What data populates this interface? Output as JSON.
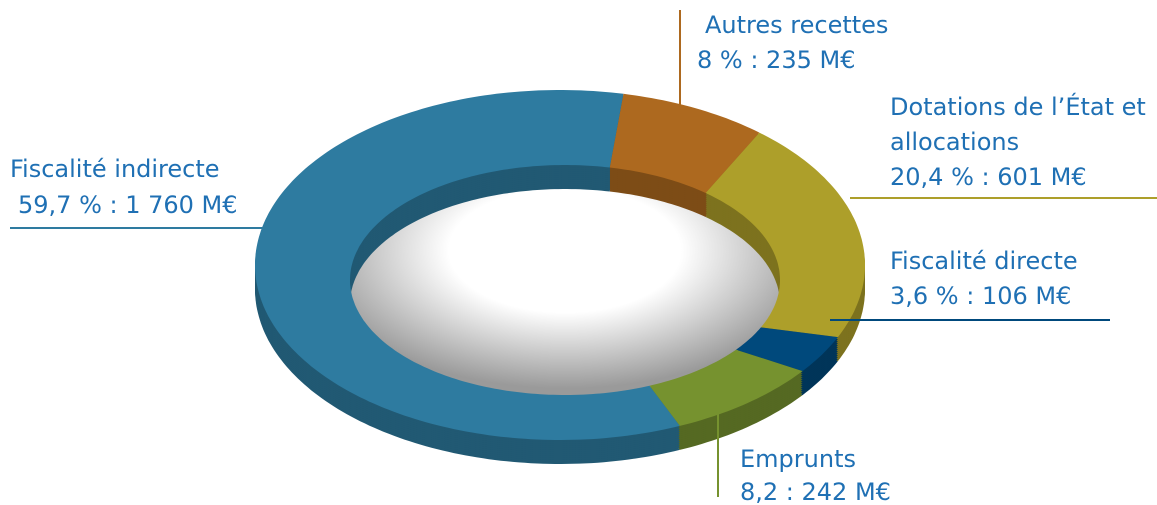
{
  "chart_data": {
    "type": "pie",
    "categories": [
      "Autres recettes",
      "Dotations de l’État et allocations",
      "Fiscalité directe",
      "Emprunts",
      "Fiscalité indirecte"
    ],
    "values": [
      8,
      20.4,
      3.6,
      8.2,
      59.7
    ],
    "value_labels": [
      "8 % : 235 M€",
      "20,4 % : 601 M€",
      "3,6 % : 106 M€",
      "8,2 : 242 M€",
      "59,7 % : 1 760 M€"
    ],
    "colors": [
      "#ad691f",
      "#ad9f2a",
      "#00497c",
      "#76922f",
      "#2e7ba0"
    ]
  }
}
